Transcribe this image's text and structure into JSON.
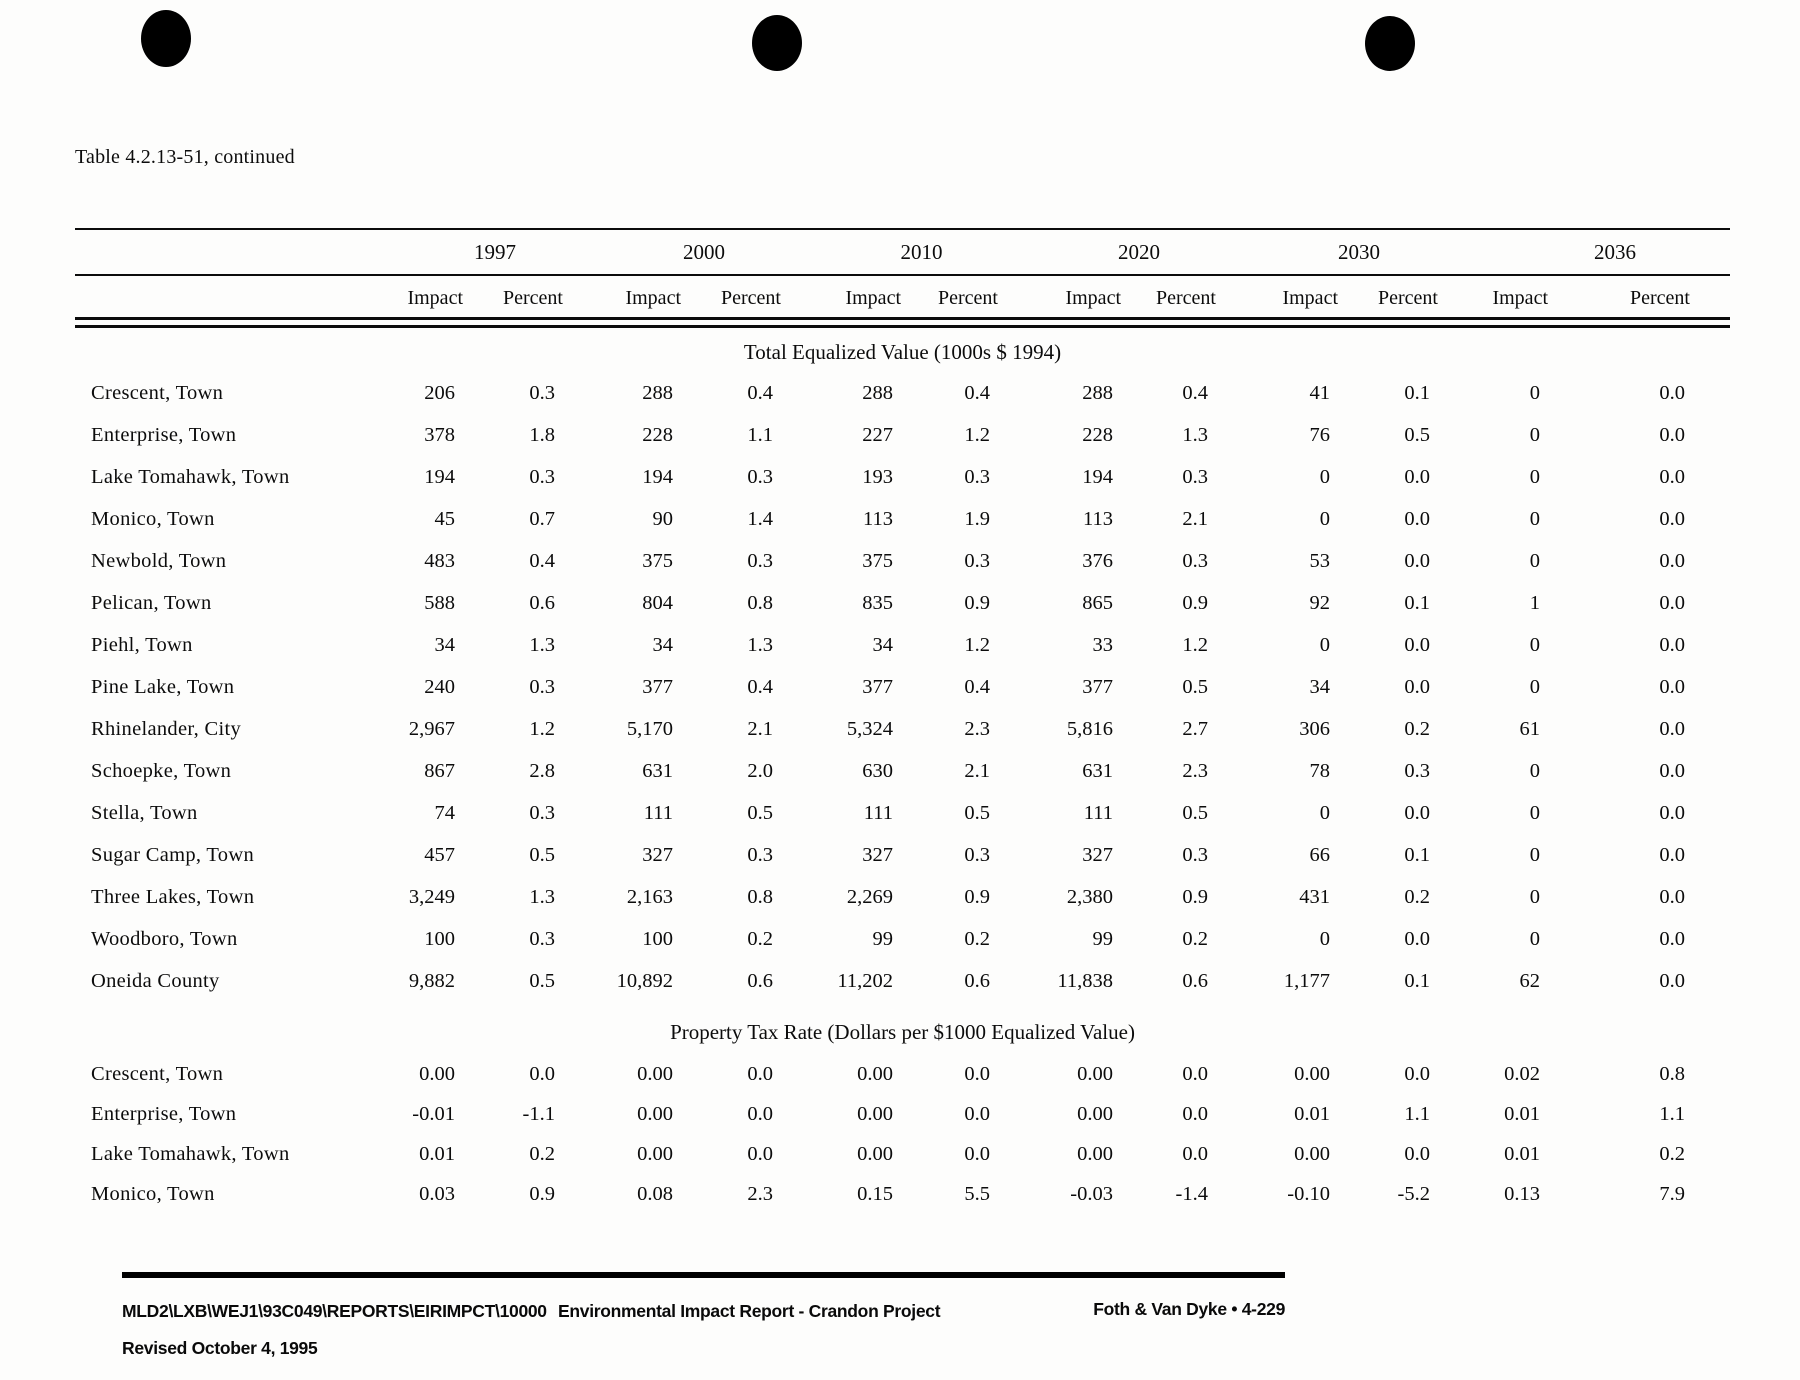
{
  "page": {
    "title": "Table 4.2.13-51, continued"
  },
  "table": {
    "years": [
      "1997",
      "2000",
      "2010",
      "2020",
      "2030",
      "2036"
    ],
    "sub_headers": [
      "Impact",
      "Percent"
    ],
    "sections": [
      {
        "header": "Total Equalized Value (1000s $ 1994)",
        "rows": [
          {
            "label": "Crescent, Town",
            "values": [
              "206",
              "0.3",
              "288",
              "0.4",
              "288",
              "0.4",
              "288",
              "0.4",
              "41",
              "0.1",
              "0",
              "0.0"
            ]
          },
          {
            "label": "Enterprise, Town",
            "values": [
              "378",
              "1.8",
              "228",
              "1.1",
              "227",
              "1.2",
              "228",
              "1.3",
              "76",
              "0.5",
              "0",
              "0.0"
            ]
          },
          {
            "label": "Lake Tomahawk, Town",
            "values": [
              "194",
              "0.3",
              "194",
              "0.3",
              "193",
              "0.3",
              "194",
              "0.3",
              "0",
              "0.0",
              "0",
              "0.0"
            ]
          },
          {
            "label": "Monico, Town",
            "values": [
              "45",
              "0.7",
              "90",
              "1.4",
              "113",
              "1.9",
              "113",
              "2.1",
              "0",
              "0.0",
              "0",
              "0.0"
            ]
          },
          {
            "label": "Newbold, Town",
            "values": [
              "483",
              "0.4",
              "375",
              "0.3",
              "375",
              "0.3",
              "376",
              "0.3",
              "53",
              "0.0",
              "0",
              "0.0"
            ]
          },
          {
            "label": "Pelican, Town",
            "values": [
              "588",
              "0.6",
              "804",
              "0.8",
              "835",
              "0.9",
              "865",
              "0.9",
              "92",
              "0.1",
              "1",
              "0.0"
            ]
          },
          {
            "label": "Piehl, Town",
            "values": [
              "34",
              "1.3",
              "34",
              "1.3",
              "34",
              "1.2",
              "33",
              "1.2",
              "0",
              "0.0",
              "0",
              "0.0"
            ]
          },
          {
            "label": "Pine Lake, Town",
            "values": [
              "240",
              "0.3",
              "377",
              "0.4",
              "377",
              "0.4",
              "377",
              "0.5",
              "34",
              "0.0",
              "0",
              "0.0"
            ]
          },
          {
            "label": "Rhinelander, City",
            "values": [
              "2,967",
              "1.2",
              "5,170",
              "2.1",
              "5,324",
              "2.3",
              "5,816",
              "2.7",
              "306",
              "0.2",
              "61",
              "0.0"
            ]
          },
          {
            "label": "Schoepke, Town",
            "values": [
              "867",
              "2.8",
              "631",
              "2.0",
              "630",
              "2.1",
              "631",
              "2.3",
              "78",
              "0.3",
              "0",
              "0.0"
            ]
          },
          {
            "label": "Stella, Town",
            "values": [
              "74",
              "0.3",
              "111",
              "0.5",
              "111",
              "0.5",
              "111",
              "0.5",
              "0",
              "0.0",
              "0",
              "0.0"
            ]
          },
          {
            "label": "Sugar Camp, Town",
            "values": [
              "457",
              "0.5",
              "327",
              "0.3",
              "327",
              "0.3",
              "327",
              "0.3",
              "66",
              "0.1",
              "0",
              "0.0"
            ]
          },
          {
            "label": "Three Lakes, Town",
            "values": [
              "3,249",
              "1.3",
              "2,163",
              "0.8",
              "2,269",
              "0.9",
              "2,380",
              "0.9",
              "431",
              "0.2",
              "0",
              "0.0"
            ]
          },
          {
            "label": "Woodboro, Town",
            "values": [
              "100",
              "0.3",
              "100",
              "0.2",
              "99",
              "0.2",
              "99",
              "0.2",
              "0",
              "0.0",
              "0",
              "0.0"
            ]
          },
          {
            "label": "Oneida County",
            "values": [
              "9,882",
              "0.5",
              "10,892",
              "0.6",
              "11,202",
              "0.6",
              "11,838",
              "0.6",
              "1,177",
              "0.1",
              "62",
              "0.0"
            ]
          }
        ]
      },
      {
        "header": "Property Tax Rate (Dollars per $1000 Equalized Value)",
        "rows": [
          {
            "label": "Crescent, Town",
            "values": [
              "0.00",
              "0.0",
              "0.00",
              "0.0",
              "0.00",
              "0.0",
              "0.00",
              "0.0",
              "0.00",
              "0.0",
              "0.02",
              "0.8"
            ]
          },
          {
            "label": "Enterprise, Town",
            "values": [
              "-0.01",
              "-1.1",
              "0.00",
              "0.0",
              "0.00",
              "0.0",
              "0.00",
              "0.0",
              "0.01",
              "1.1",
              "0.01",
              "1.1"
            ]
          },
          {
            "label": "Lake Tomahawk, Town",
            "values": [
              "0.01",
              "0.2",
              "0.00",
              "0.0",
              "0.00",
              "0.0",
              "0.00",
              "0.0",
              "0.00",
              "0.0",
              "0.01",
              "0.2"
            ]
          },
          {
            "label": "Monico, Town",
            "values": [
              "0.03",
              "0.9",
              "0.08",
              "2.3",
              "0.15",
              "5.5",
              "-0.03",
              "-1.4",
              "-0.10",
              "-5.2",
              "0.13",
              "7.9"
            ]
          }
        ]
      }
    ]
  },
  "footer": {
    "document_code": "MLD2\\LXB\\WEJ1\\93C049\\REPORTS\\EIRIMPCT\\10000",
    "report_title": "Environmental Impact Report - Crandon Project",
    "firm_page": "Foth & Van Dyke • 4-229",
    "revision": "Revised October 4, 1995"
  }
}
